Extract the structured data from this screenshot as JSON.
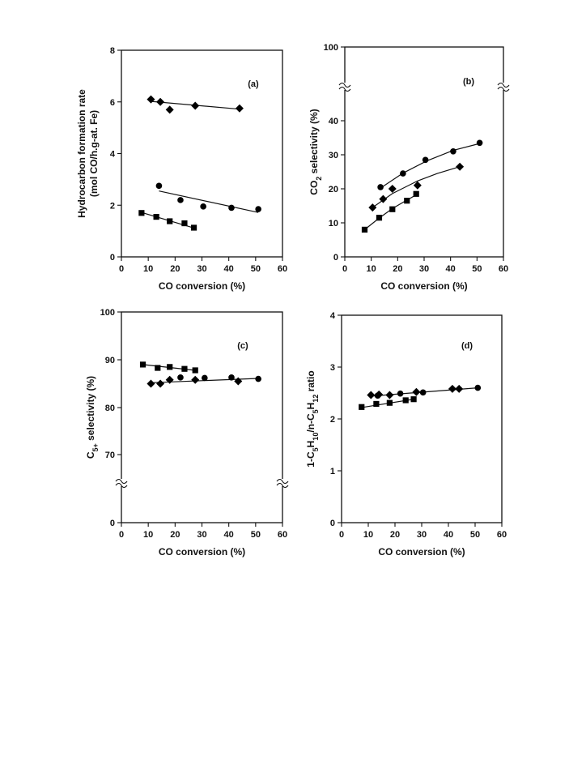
{
  "chart_data": [
    {
      "panel": "(a)",
      "type": "scatter",
      "xlabel": "CO conversion (%)",
      "ylabel": [
        "Hydrocarbon formation rate",
        "(mol CO/h.g-at. Fe)"
      ],
      "xlim": [
        0,
        60
      ],
      "ylim": [
        0,
        8
      ],
      "xticks": [
        0,
        10,
        20,
        30,
        40,
        50,
        60
      ],
      "yticks": [
        0,
        2,
        4,
        6,
        8
      ],
      "grid": false,
      "series": [
        {
          "marker": "diamond",
          "x": [
            11,
            14.5,
            18,
            27.5,
            44
          ],
          "y": [
            6.1,
            6.0,
            5.7,
            5.85,
            5.75
          ],
          "fit": [
            [
              11,
              6.02
            ],
            [
              44,
              5.72
            ]
          ]
        },
        {
          "marker": "circle",
          "x": [
            14,
            22,
            30.5,
            41,
            51
          ],
          "y": [
            2.75,
            2.2,
            1.95,
            1.9,
            1.85
          ],
          "fit": [
            [
              14,
              2.55
            ],
            [
              51,
              1.72
            ]
          ]
        },
        {
          "marker": "square",
          "x": [
            7.5,
            13,
            18,
            23.5,
            27
          ],
          "y": [
            1.7,
            1.55,
            1.38,
            1.3,
            1.13
          ],
          "fit": [
            [
              7.5,
              1.72
            ],
            [
              27,
              1.12
            ]
          ]
        }
      ]
    },
    {
      "panel": "(b)",
      "type": "scatter",
      "xlabel": "CO conversion (%)",
      "ylabel": "CO2 selectivity (%)",
      "xlim": [
        0,
        60
      ],
      "ylim": [
        0,
        45
      ],
      "xticks": [
        0,
        10,
        20,
        30,
        40,
        50,
        60
      ],
      "yticks": [
        0,
        10,
        20,
        30,
        40,
        100
      ],
      "axis_break": "y",
      "grid": false,
      "series": [
        {
          "marker": "circle",
          "x": [
            13.5,
            22,
            30.5,
            41,
            51
          ],
          "y": [
            20.5,
            24.5,
            28.5,
            31,
            33.5
          ],
          "fit": [
            [
              13.5,
              20.2
            ],
            [
              22,
              24.6
            ],
            [
              31,
              28.2
            ],
            [
              41,
              31.3
            ],
            [
              51,
              33.3
            ]
          ]
        },
        {
          "marker": "diamond",
          "x": [
            10.5,
            14.5,
            18,
            27.5,
            43.5
          ],
          "y": [
            14.5,
            17,
            20,
            21,
            26.5
          ],
          "fit": [
            [
              10.5,
              14.5
            ],
            [
              18,
              18.6
            ],
            [
              27.5,
              22.3
            ],
            [
              35,
              24.5
            ],
            [
              43.5,
              26.5
            ]
          ]
        },
        {
          "marker": "square",
          "x": [
            7.5,
            13,
            18,
            23.5,
            27
          ],
          "y": [
            8,
            11.5,
            14,
            16.5,
            18.5
          ],
          "fit": [
            [
              7.5,
              8
            ],
            [
              13,
              11.4
            ],
            [
              18,
              14.2
            ],
            [
              23.5,
              16.7
            ],
            [
              27,
              18.2
            ]
          ]
        }
      ]
    },
    {
      "panel": "(c)",
      "type": "scatter",
      "xlabel": "CO conversion (%)",
      "ylabel": "C5+ selectivity (%)",
      "xlim": [
        0,
        60
      ],
      "ylim": [
        60,
        100
      ],
      "xticks": [
        0,
        10,
        20,
        30,
        40,
        50,
        60
      ],
      "yticks": [
        0,
        70,
        80,
        90,
        100
      ],
      "axis_break": "y",
      "grid": false,
      "series": [
        {
          "marker": "square",
          "x": [
            8,
            13.5,
            18,
            23.5,
            27.5
          ],
          "y": [
            89,
            88.3,
            88.5,
            88.1,
            87.8
          ],
          "fit": [
            [
              8,
              89
            ],
            [
              27.5,
              87.8
            ]
          ]
        },
        {
          "marker": "diamond",
          "x": [
            11,
            14.5,
            18,
            27.5,
            43.5
          ],
          "y": [
            85,
            85,
            85.8,
            85.8,
            85.5
          ],
          "fit": [
            [
              11,
              85.2
            ],
            [
              51,
              86.1
            ]
          ]
        },
        {
          "marker": "circle",
          "x": [
            22,
            31,
            41,
            51
          ],
          "y": [
            86.3,
            86.2,
            86.3,
            86
          ]
        }
      ]
    },
    {
      "panel": "(d)",
      "type": "scatter",
      "xlabel": "CO conversion (%)",
      "ylabel": "1-C5H10/n-C5H12 ratio",
      "xlim": [
        0,
        60
      ],
      "ylim": [
        0,
        4
      ],
      "xticks": [
        0,
        10,
        20,
        30,
        40,
        50,
        60
      ],
      "yticks": [
        0,
        1,
        2,
        3,
        4
      ],
      "grid": false,
      "series": [
        {
          "marker": "diamond",
          "x": [
            11,
            14,
            18,
            28,
            41.5,
            44
          ],
          "y": [
            2.46,
            2.47,
            2.46,
            2.52,
            2.58,
            2.58
          ],
          "fit": [
            [
              11,
              2.44
            ],
            [
              51,
              2.6
            ]
          ]
        },
        {
          "marker": "circle",
          "x": [
            13.5,
            22,
            30.5,
            51
          ],
          "y": [
            2.45,
            2.49,
            2.51,
            2.6
          ]
        },
        {
          "marker": "square",
          "x": [
            7.5,
            13,
            18,
            24,
            27
          ],
          "y": [
            2.23,
            2.29,
            2.31,
            2.36,
            2.38
          ],
          "fit": [
            [
              7.5,
              2.22
            ],
            [
              27,
              2.38
            ]
          ]
        }
      ]
    }
  ]
}
